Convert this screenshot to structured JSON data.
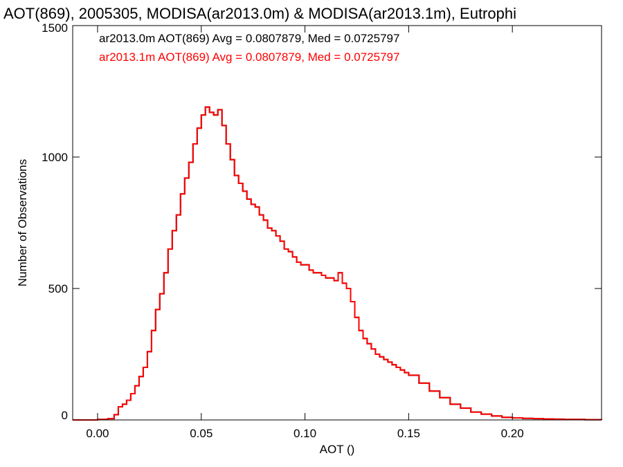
{
  "chart_data": {
    "type": "line",
    "title": "AOT(869), 2005305, MODISA(ar2013.0m) & MODISA(ar2013.1m), Eutrophi",
    "xlabel": "AOT ()",
    "ylabel": "Number of Observations",
    "xlim": [
      -0.012,
      0.243
    ],
    "ylim": [
      0,
      1500
    ],
    "xticks": [
      0.0,
      0.05,
      0.1,
      0.15,
      0.2
    ],
    "xtick_labels": [
      "0.00",
      "0.05",
      "0.10",
      "0.15",
      "0.20"
    ],
    "yticks": [
      0,
      500,
      1000,
      1500
    ],
    "ytick_labels": [
      "0",
      "500",
      "1000",
      "1500"
    ],
    "grid": false,
    "legend_position": "top-left",
    "series": [
      {
        "name": "ar2013.0m AOT(869) Avg = 0.0807879, Med = 0.0725797",
        "color": "#000000",
        "x": [
          -0.012,
          0.0,
          0.005,
          0.008,
          0.01,
          0.012,
          0.014,
          0.016,
          0.018,
          0.02,
          0.022,
          0.024,
          0.026,
          0.028,
          0.03,
          0.032,
          0.034,
          0.036,
          0.038,
          0.04,
          0.042,
          0.044,
          0.046,
          0.048,
          0.05,
          0.052,
          0.054,
          0.056,
          0.058,
          0.06,
          0.062,
          0.064,
          0.066,
          0.068,
          0.07,
          0.072,
          0.074,
          0.076,
          0.078,
          0.08,
          0.082,
          0.084,
          0.086,
          0.088,
          0.09,
          0.092,
          0.094,
          0.096,
          0.098,
          0.1,
          0.102,
          0.104,
          0.106,
          0.108,
          0.11,
          0.112,
          0.114,
          0.116,
          0.118,
          0.12,
          0.122,
          0.124,
          0.126,
          0.128,
          0.13,
          0.132,
          0.134,
          0.136,
          0.138,
          0.14,
          0.142,
          0.144,
          0.146,
          0.148,
          0.15,
          0.155,
          0.16,
          0.165,
          0.17,
          0.175,
          0.18,
          0.185,
          0.19,
          0.195,
          0.2,
          0.205,
          0.21,
          0.215,
          0.22,
          0.225,
          0.23,
          0.235,
          0.243
        ],
        "y": [
          0,
          2,
          5,
          20,
          50,
          60,
          75,
          100,
          130,
          165,
          200,
          260,
          340,
          420,
          480,
          560,
          650,
          720,
          780,
          860,
          920,
          980,
          1050,
          1110,
          1160,
          1190,
          1170,
          1160,
          1180,
          1120,
          1050,
          990,
          930,
          900,
          870,
          840,
          820,
          810,
          780,
          760,
          730,
          720,
          700,
          680,
          650,
          640,
          620,
          600,
          590,
          590,
          570,
          560,
          560,
          550,
          540,
          540,
          530,
          560,
          520,
          500,
          450,
          390,
          340,
          310,
          290,
          270,
          250,
          240,
          230,
          220,
          210,
          200,
          190,
          180,
          170,
          140,
          110,
          85,
          60,
          45,
          30,
          22,
          15,
          10,
          8,
          6,
          5,
          4,
          3,
          2,
          2,
          1,
          0
        ]
      },
      {
        "name": "ar2013.1m AOT(869) Avg = 0.0807879, Med = 0.0725797",
        "color": "#ff0000",
        "x": [
          -0.012,
          0.0,
          0.005,
          0.008,
          0.01,
          0.012,
          0.014,
          0.016,
          0.018,
          0.02,
          0.022,
          0.024,
          0.026,
          0.028,
          0.03,
          0.032,
          0.034,
          0.036,
          0.038,
          0.04,
          0.042,
          0.044,
          0.046,
          0.048,
          0.05,
          0.052,
          0.054,
          0.056,
          0.058,
          0.06,
          0.062,
          0.064,
          0.066,
          0.068,
          0.07,
          0.072,
          0.074,
          0.076,
          0.078,
          0.08,
          0.082,
          0.084,
          0.086,
          0.088,
          0.09,
          0.092,
          0.094,
          0.096,
          0.098,
          0.1,
          0.102,
          0.104,
          0.106,
          0.108,
          0.11,
          0.112,
          0.114,
          0.116,
          0.118,
          0.12,
          0.122,
          0.124,
          0.126,
          0.128,
          0.13,
          0.132,
          0.134,
          0.136,
          0.138,
          0.14,
          0.142,
          0.144,
          0.146,
          0.148,
          0.15,
          0.155,
          0.16,
          0.165,
          0.17,
          0.175,
          0.18,
          0.185,
          0.19,
          0.195,
          0.2,
          0.205,
          0.21,
          0.215,
          0.22,
          0.225,
          0.23,
          0.235,
          0.243
        ],
        "y": [
          0,
          2,
          5,
          20,
          50,
          60,
          75,
          100,
          130,
          165,
          200,
          260,
          340,
          420,
          480,
          560,
          650,
          720,
          780,
          860,
          920,
          980,
          1050,
          1110,
          1160,
          1190,
          1170,
          1160,
          1180,
          1120,
          1050,
          990,
          930,
          900,
          870,
          840,
          820,
          810,
          780,
          760,
          730,
          720,
          700,
          680,
          650,
          640,
          620,
          600,
          590,
          590,
          570,
          560,
          560,
          550,
          540,
          540,
          530,
          560,
          520,
          500,
          450,
          390,
          340,
          310,
          290,
          270,
          250,
          240,
          230,
          220,
          210,
          200,
          190,
          180,
          170,
          140,
          110,
          85,
          60,
          45,
          30,
          22,
          15,
          10,
          8,
          6,
          5,
          4,
          3,
          2,
          2,
          1,
          0
        ]
      }
    ]
  }
}
